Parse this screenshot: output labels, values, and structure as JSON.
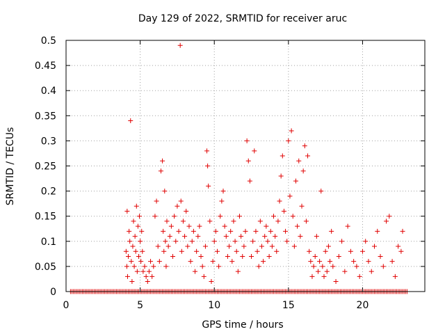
{
  "chart_data": {
    "type": "scatter",
    "title": "Day 129 of 2022, SRMTID for receiver aruc",
    "xlabel": "GPS time / hours",
    "ylabel": "SRMTID / TECUs",
    "xlim": [
      0,
      24.2
    ],
    "ylim": [
      0,
      0.5
    ],
    "x_ticks": [
      0,
      5,
      10,
      15,
      20
    ],
    "x_tick_labels": [
      "0",
      "5",
      "10",
      "15",
      "20"
    ],
    "y_ticks": [
      0,
      0.05,
      0.1,
      0.15,
      0.2,
      0.25,
      0.3,
      0.35,
      0.4,
      0.45,
      0.5
    ],
    "y_tick_labels": [
      "0",
      "0.05",
      "0.1",
      "0.15",
      "0.2",
      "0.25",
      "0.3",
      "0.35",
      "0.4",
      "0.45",
      "0.5"
    ],
    "grid": true,
    "marker": "+",
    "color": "#e00000",
    "zero_band": {
      "from": 0.3,
      "to": 23.0,
      "step": 0.1,
      "value": 0
    },
    "series": [
      {
        "name": "SRMTID",
        "x": [
          4.05,
          4.1,
          4.12,
          4.15,
          4.2,
          4.25,
          4.3,
          4.35,
          4.4,
          4.45,
          4.5,
          4.55,
          4.6,
          4.65,
          4.7,
          4.75,
          4.8,
          4.85,
          4.9,
          4.95,
          5.0,
          5.05,
          5.1,
          5.15,
          5.2,
          5.3,
          5.4,
          5.5,
          5.6,
          5.7,
          5.8,
          5.9,
          6.0,
          6.1,
          6.2,
          6.3,
          6.4,
          6.5,
          6.55,
          6.6,
          6.65,
          6.7,
          6.75,
          6.8,
          6.9,
          7.0,
          7.1,
          7.2,
          7.3,
          7.4,
          7.5,
          7.6,
          7.7,
          7.75,
          7.8,
          7.9,
          8.0,
          8.1,
          8.2,
          8.3,
          8.4,
          8.5,
          8.6,
          8.7,
          8.8,
          8.9,
          9.0,
          9.1,
          9.2,
          9.3,
          9.4,
          9.5,
          9.55,
          9.6,
          9.7,
          9.8,
          9.9,
          10.0,
          10.1,
          10.2,
          10.3,
          10.4,
          10.5,
          10.6,
          10.7,
          10.8,
          10.9,
          11.0,
          11.1,
          11.2,
          11.3,
          11.4,
          11.5,
          11.6,
          11.7,
          11.8,
          11.9,
          12.0,
          12.1,
          12.2,
          12.3,
          12.4,
          12.5,
          12.6,
          12.7,
          12.8,
          12.9,
          13.0,
          13.1,
          13.2,
          13.3,
          13.4,
          13.5,
          13.6,
          13.7,
          13.8,
          13.9,
          14.0,
          14.1,
          14.2,
          14.3,
          14.4,
          14.5,
          14.6,
          14.7,
          14.8,
          14.9,
          15.0,
          15.1,
          15.2,
          15.3,
          15.4,
          15.5,
          15.6,
          15.7,
          15.8,
          15.9,
          16.0,
          16.1,
          16.2,
          16.3,
          16.4,
          16.5,
          16.6,
          16.7,
          16.8,
          16.9,
          17.0,
          17.1,
          17.2,
          17.3,
          17.4,
          17.5,
          17.6,
          17.7,
          17.8,
          17.9,
          18.0,
          18.2,
          18.4,
          18.6,
          18.8,
          19.0,
          19.2,
          19.4,
          19.6,
          19.8,
          20.0,
          20.2,
          20.4,
          20.6,
          20.8,
          21.0,
          21.2,
          21.4,
          21.6,
          21.8,
          22.0,
          22.2,
          22.4,
          22.6,
          22.7
        ],
        "y": [
          0.08,
          0.05,
          0.16,
          0.03,
          0.07,
          0.12,
          0.1,
          0.34,
          0.06,
          0.02,
          0.09,
          0.14,
          0.05,
          0.11,
          0.08,
          0.17,
          0.04,
          0.13,
          0.07,
          0.15,
          0.1,
          0.06,
          0.12,
          0.08,
          0.04,
          0.05,
          0.03,
          0.02,
          0.04,
          0.06,
          0.03,
          0.05,
          0.15,
          0.18,
          0.09,
          0.06,
          0.24,
          0.26,
          0.12,
          0.08,
          0.2,
          0.1,
          0.05,
          0.14,
          0.09,
          0.11,
          0.13,
          0.07,
          0.15,
          0.1,
          0.17,
          0.12,
          0.49,
          0.18,
          0.08,
          0.14,
          0.11,
          0.16,
          0.09,
          0.13,
          0.06,
          0.1,
          0.12,
          0.04,
          0.08,
          0.11,
          0.13,
          0.07,
          0.05,
          0.03,
          0.09,
          0.28,
          0.25,
          0.21,
          0.14,
          0.02,
          0.06,
          0.1,
          0.12,
          0.08,
          0.05,
          0.15,
          0.18,
          0.2,
          0.13,
          0.11,
          0.07,
          0.09,
          0.12,
          0.06,
          0.14,
          0.1,
          0.08,
          0.04,
          0.15,
          0.11,
          0.07,
          0.09,
          0.12,
          0.3,
          0.26,
          0.22,
          0.07,
          0.1,
          0.28,
          0.12,
          0.08,
          0.05,
          0.14,
          0.09,
          0.06,
          0.11,
          0.13,
          0.1,
          0.07,
          0.12,
          0.09,
          0.15,
          0.11,
          0.08,
          0.14,
          0.18,
          0.23,
          0.27,
          0.16,
          0.12,
          0.1,
          0.3,
          0.19,
          0.32,
          0.15,
          0.09,
          0.22,
          0.13,
          0.26,
          0.11,
          0.17,
          0.24,
          0.29,
          0.14,
          0.27,
          0.08,
          0.06,
          0.03,
          0.05,
          0.07,
          0.11,
          0.04,
          0.06,
          0.2,
          0.05,
          0.03,
          0.08,
          0.04,
          0.09,
          0.06,
          0.12,
          0.05,
          0.02,
          0.07,
          0.1,
          0.04,
          0.13,
          0.08,
          0.06,
          0.05,
          0.03,
          0.08,
          0.1,
          0.06,
          0.04,
          0.09,
          0.12,
          0.07,
          0.05,
          0.14,
          0.15,
          0.06,
          0.03,
          0.09,
          0.08,
          0.12
        ]
      }
    ]
  }
}
